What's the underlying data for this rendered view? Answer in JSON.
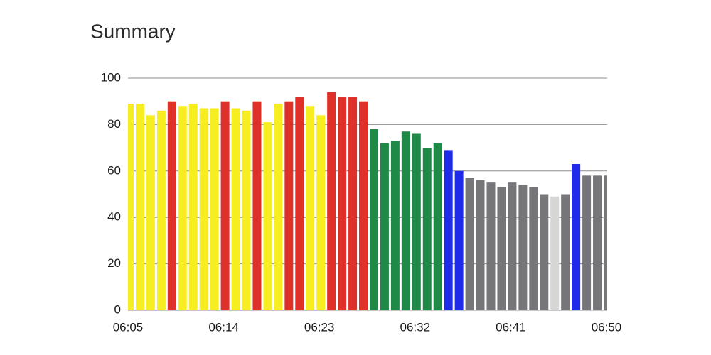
{
  "chart_data": {
    "type": "bar",
    "title": "Summary",
    "x": [
      "06:05",
      "06:06",
      "06:07",
      "06:08",
      "06:09",
      "06:10",
      "06:11",
      "06:12",
      "06:13",
      "06:14",
      "06:15",
      "06:16",
      "06:17",
      "06:18",
      "06:19",
      "06:20",
      "06:21",
      "06:22",
      "06:23",
      "06:24",
      "06:25",
      "06:26",
      "06:27",
      "06:28",
      "06:29",
      "06:30",
      "06:31",
      "06:32",
      "06:33",
      "06:34",
      "06:35",
      "06:36",
      "06:37",
      "06:38",
      "06:39",
      "06:40",
      "06:41",
      "06:42",
      "06:43",
      "06:44",
      "06:45",
      "06:46",
      "06:47",
      "06:48",
      "06:49",
      "06:50"
    ],
    "values": [
      89,
      89,
      84,
      86,
      90,
      88,
      89,
      87,
      87,
      90,
      87,
      86,
      90,
      81,
      89,
      90,
      92,
      88,
      84,
      94,
      92,
      92,
      90,
      78,
      72,
      73,
      77,
      76,
      70,
      72,
      69,
      60,
      57,
      56,
      55,
      53,
      55,
      54,
      53,
      50,
      49,
      50,
      63,
      58,
      58,
      58
    ],
    "colors": [
      "#f7ee22",
      "#f7ee22",
      "#f7ee22",
      "#f7ee22",
      "#e0302a",
      "#f7ee22",
      "#f7ee22",
      "#f7ee22",
      "#f7ee22",
      "#e0302a",
      "#f7ee22",
      "#f7ee22",
      "#e0302a",
      "#f7ee22",
      "#f7ee22",
      "#e0302a",
      "#e0302a",
      "#f7ee22",
      "#f7ee22",
      "#e0302a",
      "#e0302a",
      "#e0302a",
      "#e0302a",
      "#1f8a47",
      "#1f8a47",
      "#1f8a47",
      "#1f8a47",
      "#1f8a47",
      "#1f8a47",
      "#1f8a47",
      "#1f2bea",
      "#1f2bea",
      "#76767a",
      "#76767a",
      "#76767a",
      "#76767a",
      "#76767a",
      "#76767a",
      "#76767a",
      "#76767a",
      "#d6d6d6",
      "#76767a",
      "#1f2bea",
      "#76767a",
      "#76767a",
      "#76767a"
    ],
    "xlim": [
      "06:05",
      "06:50"
    ],
    "xticks": [
      "06:05",
      "06:14",
      "06:23",
      "06:32",
      "06:41",
      "06:50"
    ],
    "ylim": [
      0,
      100
    ],
    "yticks": [
      0,
      20,
      40,
      60,
      80,
      100
    ],
    "grid": true
  }
}
